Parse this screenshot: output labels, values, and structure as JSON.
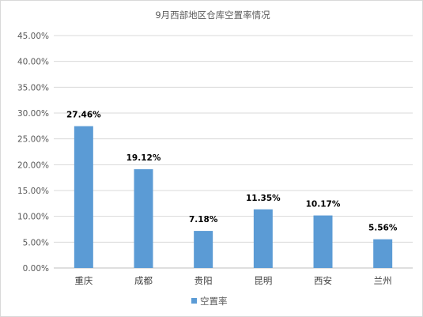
{
  "chart_data": {
    "type": "bar",
    "title": "9月西部地区仓库空置率情况",
    "categories": [
      "重庆",
      "成都",
      "贵阳",
      "昆明",
      "西安",
      "兰州"
    ],
    "series": [
      {
        "name": "空置率",
        "values": [
          27.46,
          19.12,
          7.18,
          11.35,
          10.17,
          5.56
        ],
        "color": "#5B9BD5"
      }
    ],
    "data_labels": [
      "27.46%",
      "19.12%",
      "7.18%",
      "11.35%",
      "10.17%",
      "5.56%"
    ],
    "y_ticks": [
      "0.00%",
      "5.00%",
      "10.00%",
      "15.00%",
      "20.00%",
      "25.00%",
      "30.00%",
      "35.00%",
      "40.00%",
      "45.00%"
    ],
    "ylim": [
      0,
      45
    ],
    "grid": true,
    "legend_position": "bottom",
    "xlabel": "",
    "ylabel": ""
  }
}
